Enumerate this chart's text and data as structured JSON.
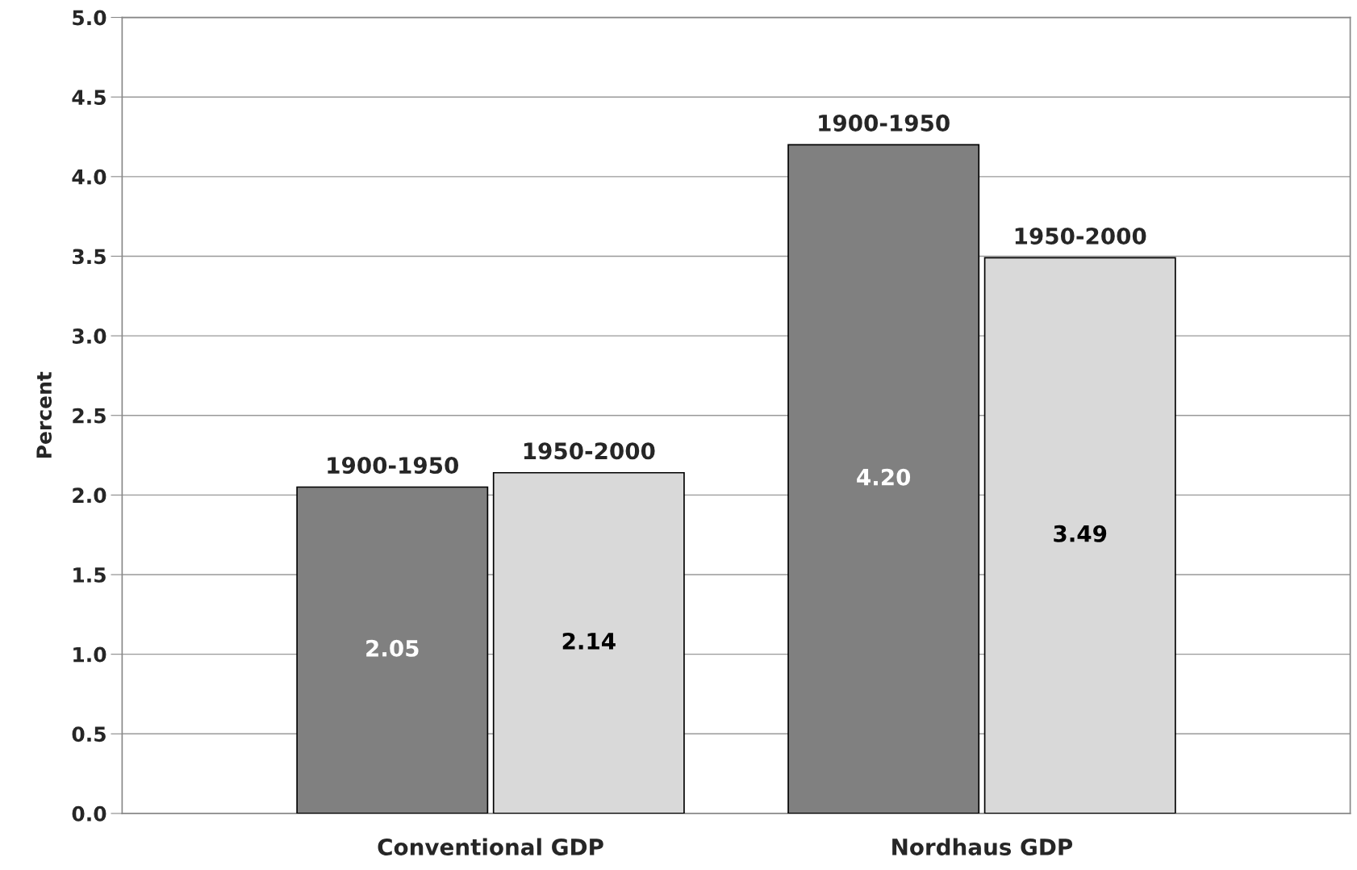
{
  "chart_data": {
    "type": "bar",
    "ylabel": "Percent",
    "categories": [
      "Conventional GDP",
      "Nordhaus GDP"
    ],
    "series": [
      {
        "name": "1900-1950",
        "color": "#808080",
        "values": [
          2.05,
          4.2
        ],
        "value_labels": [
          "2.05",
          "4.20"
        ]
      },
      {
        "name": "1950-2000",
        "color": "#d9d9d9",
        "values": [
          2.14,
          3.49
        ],
        "value_labels": [
          "2.14",
          "3.49"
        ]
      }
    ],
    "ylim": [
      0,
      5
    ],
    "yticks": [
      {
        "value": 0,
        "label": "0.0"
      },
      {
        "value": 0.5,
        "label": "0.5"
      },
      {
        "value": 1,
        "label": "1.0"
      },
      {
        "value": 1.5,
        "label": "1.5"
      },
      {
        "value": 2,
        "label": "2.0"
      },
      {
        "value": 2.5,
        "label": "2.5"
      },
      {
        "value": 3,
        "label": "3.0"
      },
      {
        "value": 3.5,
        "label": "3.5"
      },
      {
        "value": 4,
        "label": "4.0"
      },
      {
        "value": 4.5,
        "label": "4.5"
      },
      {
        "value": 5,
        "label": "5.0"
      }
    ],
    "grid": "y",
    "legend": false
  }
}
